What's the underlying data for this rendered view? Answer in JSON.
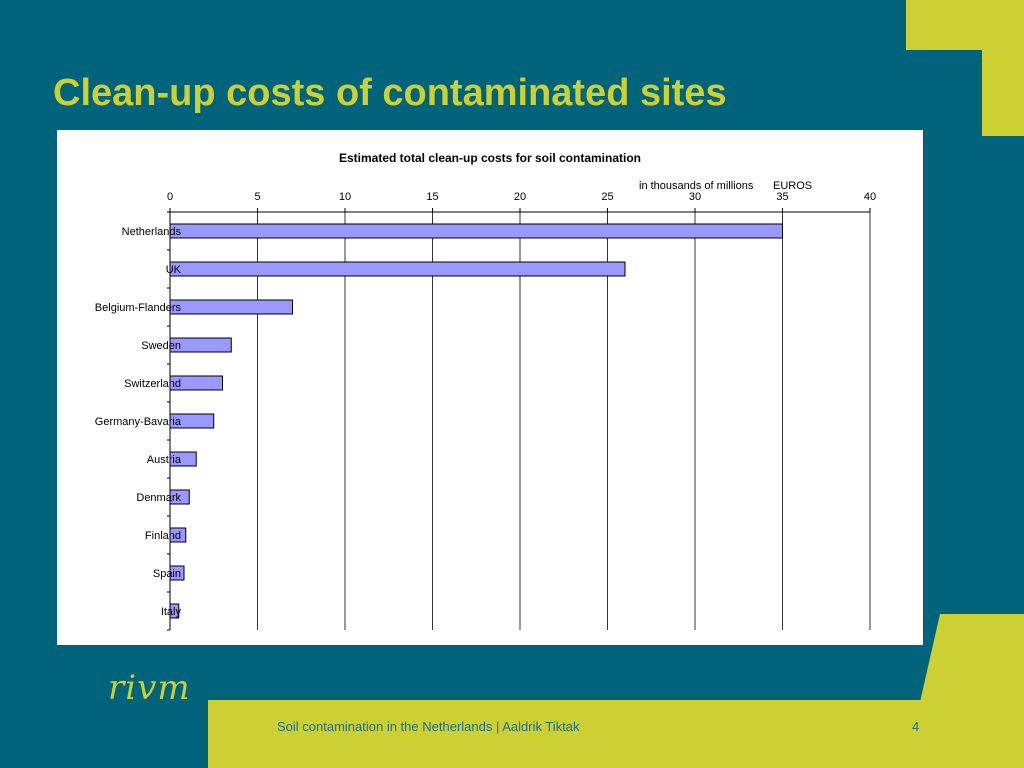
{
  "slide": {
    "title": "Clean-up costs of contaminated sites",
    "footer_text": "Soil contamination in the Netherlands | Aaldrik Tiktak",
    "page_number": "4",
    "logo_text": "rivm"
  },
  "colors": {
    "background": "#00637c",
    "accent": "#cdd032",
    "footer_text": "#1b6e8c",
    "bar_fill": "#9999ff"
  },
  "chart_data": {
    "type": "bar",
    "orientation": "horizontal",
    "title": "Estimated total clean-up costs for soil contamination",
    "unit_label": "in thousands of millions",
    "currency_label": "EUROS",
    "xlim": [
      0,
      40
    ],
    "xticks": [
      0,
      5,
      10,
      15,
      20,
      25,
      30,
      35,
      40
    ],
    "grid": true,
    "legend": "none",
    "categories": [
      "Netherlands",
      "UK",
      "Belgium-Flanders",
      "Sweden",
      "Switzerland",
      "Germany-Bavaria",
      "Austria",
      "Denmark",
      "Finland",
      "Spain",
      "Italy"
    ],
    "values": [
      35,
      26,
      7,
      3.5,
      3,
      2.5,
      1.5,
      1.1,
      0.9,
      0.8,
      0.5
    ]
  }
}
